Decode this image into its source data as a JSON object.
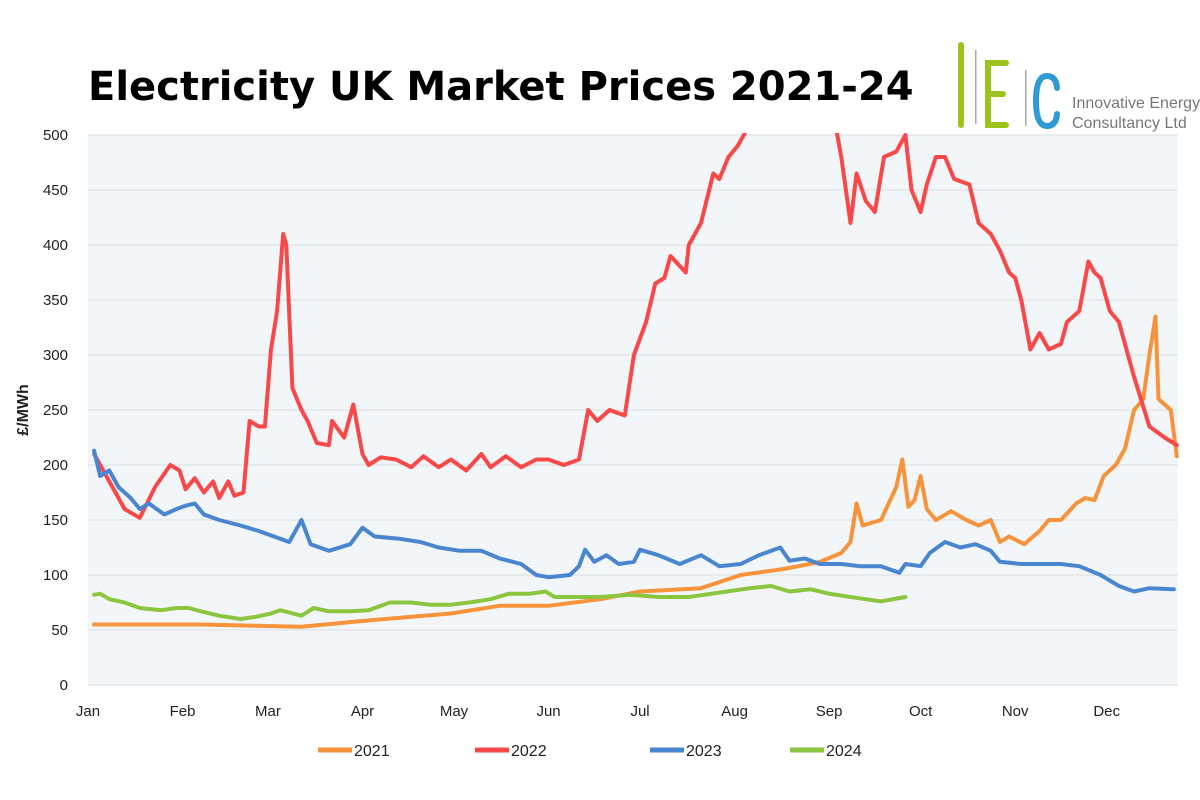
{
  "chart_data": {
    "type": "line",
    "title": "Electricity UK Market Prices 2021-24",
    "ylabel": "£/MWh",
    "xlabel": "",
    "ylim": [
      0,
      500
    ],
    "yticks": [
      0,
      50,
      100,
      150,
      200,
      250,
      300,
      350,
      400,
      450,
      500
    ],
    "x_unit": "day of year",
    "xticks": [
      {
        "label": "Jan",
        "day": 1
      },
      {
        "label": "Feb",
        "day": 32
      },
      {
        "label": "Mar",
        "day": 60
      },
      {
        "label": "Apr",
        "day": 91
      },
      {
        "label": "May",
        "day": 121
      },
      {
        "label": "Jun",
        "day": 152
      },
      {
        "label": "Jul",
        "day": 182
      },
      {
        "label": "Aug",
        "day": 213
      },
      {
        "label": "Sep",
        "day": 244
      },
      {
        "label": "Oct",
        "day": 274
      },
      {
        "label": "Nov",
        "day": 305
      },
      {
        "label": "Dec",
        "day": 335
      }
    ],
    "grid": true,
    "legend_position": "bottom",
    "series": [
      {
        "name": "2021",
        "color": "#f7933b",
        "points": [
          [
            3,
            55
          ],
          [
            21,
            55
          ],
          [
            38,
            55
          ],
          [
            54,
            54
          ],
          [
            71,
            53
          ],
          [
            90,
            58
          ],
          [
            120,
            65
          ],
          [
            136,
            72
          ],
          [
            152,
            72
          ],
          [
            169,
            78
          ],
          [
            182,
            85
          ],
          [
            202,
            88
          ],
          [
            215,
            100
          ],
          [
            228,
            105
          ],
          [
            234,
            108
          ],
          [
            241,
            112
          ],
          [
            248,
            120
          ],
          [
            251,
            130
          ],
          [
            253,
            165
          ],
          [
            255,
            145
          ],
          [
            261,
            150
          ],
          [
            266,
            180
          ],
          [
            268,
            205
          ],
          [
            270,
            162
          ],
          [
            272,
            168
          ],
          [
            274,
            190
          ],
          [
            276,
            160
          ],
          [
            279,
            150
          ],
          [
            284,
            158
          ],
          [
            289,
            150
          ],
          [
            293,
            145
          ],
          [
            297,
            150
          ],
          [
            300,
            130
          ],
          [
            303,
            135
          ],
          [
            308,
            128
          ],
          [
            313,
            140
          ],
          [
            316,
            150
          ],
          [
            320,
            150
          ],
          [
            325,
            165
          ],
          [
            328,
            170
          ],
          [
            331,
            168
          ],
          [
            334,
            190
          ],
          [
            338,
            200
          ],
          [
            341,
            215
          ],
          [
            344,
            250
          ],
          [
            347,
            260
          ],
          [
            349,
            300
          ],
          [
            351,
            335
          ],
          [
            352,
            260
          ],
          [
            356,
            250
          ],
          [
            358,
            208
          ]
        ]
      },
      {
        "name": "2022",
        "color": "#f94848",
        "points": [
          [
            3,
            210
          ],
          [
            7,
            190
          ],
          [
            13,
            160
          ],
          [
            18,
            152
          ],
          [
            23,
            180
          ],
          [
            28,
            200
          ],
          [
            31,
            195
          ],
          [
            33,
            178
          ],
          [
            36,
            188
          ],
          [
            39,
            175
          ],
          [
            42,
            185
          ],
          [
            44,
            170
          ],
          [
            47,
            185
          ],
          [
            49,
            172
          ],
          [
            52,
            175
          ],
          [
            54,
            240
          ],
          [
            57,
            235
          ],
          [
            59,
            235
          ],
          [
            61,
            305
          ],
          [
            63,
            340
          ],
          [
            65,
            410
          ],
          [
            66,
            400
          ],
          [
            68,
            270
          ],
          [
            71,
            250
          ],
          [
            73,
            240
          ],
          [
            76,
            220
          ],
          [
            80,
            218
          ],
          [
            81,
            240
          ],
          [
            85,
            225
          ],
          [
            88,
            255
          ],
          [
            91,
            210
          ],
          [
            93,
            200
          ],
          [
            97,
            207
          ],
          [
            102,
            205
          ],
          [
            107,
            198
          ],
          [
            111,
            208
          ],
          [
            116,
            198
          ],
          [
            120,
            205
          ],
          [
            125,
            195
          ],
          [
            130,
            210
          ],
          [
            133,
            198
          ],
          [
            138,
            208
          ],
          [
            143,
            198
          ],
          [
            148,
            205
          ],
          [
            152,
            205
          ],
          [
            157,
            200
          ],
          [
            162,
            205
          ],
          [
            165,
            250
          ],
          [
            168,
            240
          ],
          [
            172,
            250
          ],
          [
            177,
            245
          ],
          [
            180,
            300
          ],
          [
            184,
            330
          ],
          [
            187,
            365
          ],
          [
            190,
            370
          ],
          [
            192,
            390
          ],
          [
            197,
            375
          ],
          [
            198,
            400
          ],
          [
            202,
            420
          ],
          [
            206,
            465
          ],
          [
            208,
            460
          ],
          [
            211,
            480
          ],
          [
            214,
            490
          ],
          [
            216,
            500
          ],
          [
            228,
            560
          ],
          [
            238,
            580
          ],
          [
            246,
            510
          ],
          [
            248,
            480
          ],
          [
            251,
            420
          ],
          [
            253,
            465
          ],
          [
            256,
            440
          ],
          [
            259,
            430
          ],
          [
            262,
            480
          ],
          [
            266,
            485
          ],
          [
            269,
            500
          ],
          [
            271,
            450
          ],
          [
            274,
            430
          ],
          [
            276,
            455
          ],
          [
            279,
            480
          ],
          [
            282,
            480
          ],
          [
            285,
            460
          ],
          [
            290,
            455
          ],
          [
            293,
            420
          ],
          [
            297,
            410
          ],
          [
            300,
            395
          ],
          [
            303,
            375
          ],
          [
            305,
            370
          ],
          [
            307,
            350
          ],
          [
            310,
            305
          ],
          [
            313,
            320
          ],
          [
            316,
            305
          ],
          [
            320,
            310
          ],
          [
            322,
            330
          ],
          [
            326,
            340
          ],
          [
            329,
            385
          ],
          [
            331,
            375
          ],
          [
            333,
            370
          ],
          [
            336,
            340
          ],
          [
            339,
            330
          ],
          [
            344,
            280
          ],
          [
            349,
            235
          ],
          [
            354,
            225
          ],
          [
            358,
            218
          ]
        ]
      },
      {
        "name": "2023",
        "color": "#4a86d0",
        "points": [
          [
            3,
            213
          ],
          [
            5,
            190
          ],
          [
            8,
            195
          ],
          [
            11,
            180
          ],
          [
            15,
            170
          ],
          [
            18,
            160
          ],
          [
            21,
            165
          ],
          [
            26,
            155
          ],
          [
            30,
            160
          ],
          [
            33,
            163
          ],
          [
            36,
            165
          ],
          [
            39,
            155
          ],
          [
            44,
            150
          ],
          [
            51,
            145
          ],
          [
            57,
            140
          ],
          [
            62,
            135
          ],
          [
            67,
            130
          ],
          [
            71,
            150
          ],
          [
            74,
            128
          ],
          [
            80,
            122
          ],
          [
            87,
            128
          ],
          [
            91,
            143
          ],
          [
            95,
            135
          ],
          [
            103,
            133
          ],
          [
            110,
            130
          ],
          [
            116,
            125
          ],
          [
            123,
            122
          ],
          [
            130,
            122
          ],
          [
            136,
            115
          ],
          [
            143,
            110
          ],
          [
            148,
            100
          ],
          [
            152,
            98
          ],
          [
            159,
            100
          ],
          [
            162,
            108
          ],
          [
            164,
            123
          ],
          [
            167,
            112
          ],
          [
            171,
            118
          ],
          [
            175,
            110
          ],
          [
            180,
            112
          ],
          [
            182,
            123
          ],
          [
            188,
            118
          ],
          [
            195,
            110
          ],
          [
            202,
            118
          ],
          [
            208,
            108
          ],
          [
            215,
            110
          ],
          [
            221,
            118
          ],
          [
            228,
            125
          ],
          [
            231,
            113
          ],
          [
            236,
            115
          ],
          [
            241,
            110
          ],
          [
            248,
            110
          ],
          [
            254,
            108
          ],
          [
            261,
            108
          ],
          [
            267,
            102
          ],
          [
            269,
            110
          ],
          [
            274,
            108
          ],
          [
            277,
            120
          ],
          [
            282,
            130
          ],
          [
            287,
            125
          ],
          [
            292,
            128
          ],
          [
            297,
            122
          ],
          [
            300,
            112
          ],
          [
            307,
            110
          ],
          [
            313,
            110
          ],
          [
            320,
            110
          ],
          [
            326,
            108
          ],
          [
            333,
            100
          ],
          [
            339,
            90
          ],
          [
            344,
            85
          ],
          [
            349,
            88
          ],
          [
            357,
            87
          ]
        ]
      },
      {
        "name": "2024",
        "color": "#8cc63f",
        "points": [
          [
            3,
            82
          ],
          [
            5,
            83
          ],
          [
            8,
            78
          ],
          [
            13,
            75
          ],
          [
            18,
            70
          ],
          [
            25,
            68
          ],
          [
            30,
            70
          ],
          [
            34,
            70
          ],
          [
            38,
            67
          ],
          [
            44,
            63
          ],
          [
            51,
            60
          ],
          [
            56,
            62
          ],
          [
            61,
            65
          ],
          [
            64,
            68
          ],
          [
            71,
            63
          ],
          [
            75,
            70
          ],
          [
            80,
            67
          ],
          [
            87,
            67
          ],
          [
            93,
            68
          ],
          [
            100,
            75
          ],
          [
            107,
            75
          ],
          [
            113,
            73
          ],
          [
            120,
            73
          ],
          [
            126,
            75
          ],
          [
            133,
            78
          ],
          [
            139,
            83
          ],
          [
            146,
            83
          ],
          [
            151,
            85
          ],
          [
            154,
            80
          ],
          [
            159,
            80
          ],
          [
            169,
            80
          ],
          [
            179,
            82
          ],
          [
            188,
            80
          ],
          [
            198,
            80
          ],
          [
            208,
            84
          ],
          [
            218,
            88
          ],
          [
            225,
            90
          ],
          [
            231,
            85
          ],
          [
            238,
            87
          ],
          [
            244,
            83
          ],
          [
            251,
            80
          ],
          [
            256,
            78
          ],
          [
            261,
            76
          ],
          [
            269,
            80
          ]
        ]
      }
    ]
  },
  "logo": {
    "mark": "IEC",
    "line1": "Innovative Energy",
    "line2": "Consultancy Ltd"
  }
}
